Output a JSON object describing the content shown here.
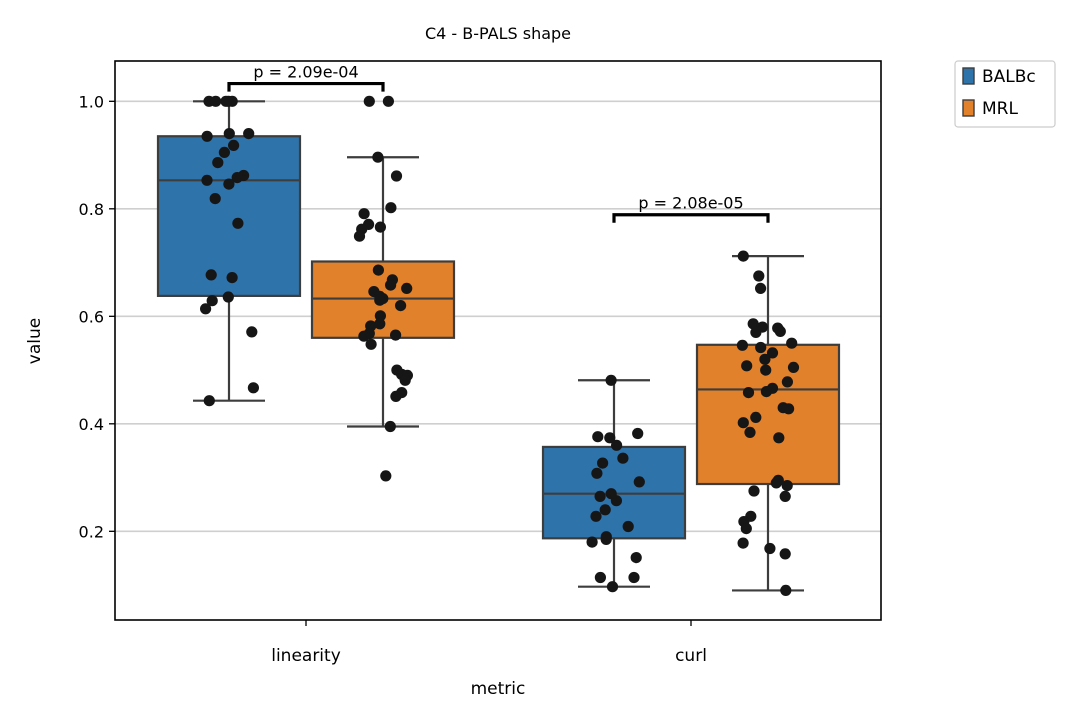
{
  "chart_data": {
    "type": "box",
    "title": "C4 - B-PALS shape",
    "xlabel": "metric",
    "ylabel": "value",
    "ylim": [
      0.035,
      1.075
    ],
    "yticks": [
      0.2,
      0.4,
      0.6,
      0.8,
      1.0
    ],
    "ytick_labels": [
      "0.2",
      "0.4",
      "0.6",
      "0.8",
      "1.0"
    ],
    "grid": "horizontal",
    "categories": [
      "linearity",
      "curl"
    ],
    "legend": {
      "position": "outside-top-right",
      "entries": [
        "BALBc",
        "MRL"
      ]
    },
    "series": [
      {
        "name": "BALBc",
        "color": "#2f73ab",
        "boxes": [
          {
            "category": "linearity",
            "whisker_low": 0.443,
            "q1": 0.638,
            "median": 0.853,
            "q3": 0.935,
            "whisker_high": 1.0,
            "points": [
              1.0,
              1.0,
              1.0,
              1.0,
              1.0,
              0.94,
              0.935,
              0.94,
              0.918,
              0.905,
              0.886,
              0.862,
              0.858,
              0.853,
              0.846,
              0.819,
              0.773,
              0.677,
              0.672,
              0.636,
              0.629,
              0.614,
              0.571,
              0.467,
              0.443
            ]
          },
          {
            "category": "curl",
            "whisker_low": 0.097,
            "q1": 0.187,
            "median": 0.27,
            "q3": 0.357,
            "whisker_high": 0.481,
            "points": [
              0.481,
              0.382,
              0.376,
              0.374,
              0.36,
              0.336,
              0.327,
              0.308,
              0.292,
              0.27,
              0.265,
              0.257,
              0.24,
              0.228,
              0.209,
              0.19,
              0.185,
              0.18,
              0.151,
              0.114,
              0.114,
              0.097
            ]
          }
        ]
      },
      {
        "name": "MRL",
        "color": "#e1812c",
        "boxes": [
          {
            "category": "linearity",
            "whisker_low": 0.395,
            "q1": 0.56,
            "median": 0.633,
            "q3": 0.702,
            "whisker_high": 0.896,
            "points": [
              1.0,
              1.0,
              0.896,
              0.861,
              0.802,
              0.791,
              0.771,
              0.766,
              0.762,
              0.749,
              0.686,
              0.668,
              0.658,
              0.652,
              0.646,
              0.637,
              0.633,
              0.63,
              0.62,
              0.601,
              0.586,
              0.582,
              0.568,
              0.565,
              0.563,
              0.548,
              0.5,
              0.492,
              0.49,
              0.481,
              0.458,
              0.451,
              0.395,
              0.303
            ]
          },
          {
            "category": "curl",
            "whisker_low": 0.09,
            "q1": 0.288,
            "median": 0.464,
            "q3": 0.547,
            "whisker_high": 0.712,
            "points": [
              0.712,
              0.675,
              0.652,
              0.586,
              0.58,
              0.578,
              0.572,
              0.57,
              0.55,
              0.546,
              0.542,
              0.532,
              0.52,
              0.508,
              0.505,
              0.5,
              0.478,
              0.466,
              0.46,
              0.458,
              0.43,
              0.428,
              0.412,
              0.402,
              0.384,
              0.374,
              0.295,
              0.29,
              0.285,
              0.275,
              0.265,
              0.228,
              0.218,
              0.205,
              0.178,
              0.168,
              0.158,
              0.09
            ]
          }
        ]
      }
    ],
    "annotations": [
      {
        "category": "linearity",
        "text": "p = 2.09e-04",
        "y": 1.033
      },
      {
        "category": "curl",
        "text": "p = 2.08e-05",
        "y": 0.789
      }
    ]
  }
}
